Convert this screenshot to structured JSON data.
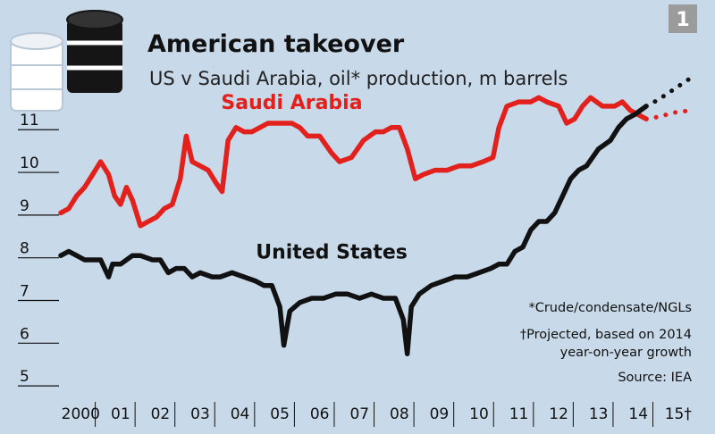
{
  "chart_number": "1",
  "title": "American takeover",
  "subtitle": "US v Saudi Arabia, oil* production, m barrels",
  "notes": {
    "footnote": "*Crude/condensate/NGLs",
    "projection_line1": "†Projected, based on 2014",
    "projection_line2": "year-on-year growth",
    "source": "Source: IEA"
  },
  "colors": {
    "background": "#c8d9e9",
    "saudi": "#e3211c",
    "us": "#111111",
    "badge": "#9b9b9b"
  },
  "icon": "oil-barrels-icon",
  "chart_data": {
    "type": "line",
    "title": "American takeover",
    "subtitle": "US v Saudi Arabia, oil* production, m barrels",
    "xlabel": "",
    "ylabel": "",
    "ylim": [
      4.5,
      11.8
    ],
    "xlim": [
      2000,
      2016.2
    ],
    "yticks": [
      "5",
      "6",
      "7",
      "8",
      "9",
      "10",
      "11"
    ],
    "xticks": [
      {
        "label": "2000",
        "value": 2000.5
      },
      {
        "label": "01",
        "value": 2001.5
      },
      {
        "label": "02",
        "value": 2002.5
      },
      {
        "label": "03",
        "value": 2003.5
      },
      {
        "label": "04",
        "value": 2004.5
      },
      {
        "label": "05",
        "value": 2005.5
      },
      {
        "label": "06",
        "value": 2006.5
      },
      {
        "label": "07",
        "value": 2007.5
      },
      {
        "label": "08",
        "value": 2008.5
      },
      {
        "label": "09",
        "value": 2009.5
      },
      {
        "label": "10",
        "value": 2010.5
      },
      {
        "label": "11",
        "value": 2011.5
      },
      {
        "label": "12",
        "value": 2012.5
      },
      {
        "label": "13",
        "value": 2013.5
      },
      {
        "label": "14",
        "value": 2014.5
      },
      {
        "label": "15†",
        "value": 2015.5
      }
    ],
    "grid": "horizontal ticks only",
    "series": [
      {
        "name": "Saudi Arabia",
        "color": "#e3211c",
        "points": [
          [
            2000.0,
            8.8
          ],
          [
            2000.2,
            8.9
          ],
          [
            2000.4,
            9.2
          ],
          [
            2000.6,
            9.4
          ],
          [
            2000.8,
            9.7
          ],
          [
            2001.0,
            10.0
          ],
          [
            2001.2,
            9.7
          ],
          [
            2001.35,
            9.2
          ],
          [
            2001.5,
            9.0
          ],
          [
            2001.65,
            9.4
          ],
          [
            2001.8,
            9.1
          ],
          [
            2002.0,
            8.5
          ],
          [
            2002.2,
            8.6
          ],
          [
            2002.4,
            8.7
          ],
          [
            2002.6,
            8.9
          ],
          [
            2002.8,
            9.0
          ],
          [
            2003.0,
            9.6
          ],
          [
            2003.15,
            10.6
          ],
          [
            2003.3,
            10.0
          ],
          [
            2003.5,
            9.9
          ],
          [
            2003.7,
            9.8
          ],
          [
            2003.9,
            9.5
          ],
          [
            2004.05,
            9.3
          ],
          [
            2004.2,
            10.5
          ],
          [
            2004.4,
            10.8
          ],
          [
            2004.6,
            10.7
          ],
          [
            2004.8,
            10.7
          ],
          [
            2005.0,
            10.8
          ],
          [
            2005.2,
            10.9
          ],
          [
            2005.5,
            10.9
          ],
          [
            2005.8,
            10.9
          ],
          [
            2006.0,
            10.8
          ],
          [
            2006.2,
            10.6
          ],
          [
            2006.5,
            10.6
          ],
          [
            2006.8,
            10.2
          ],
          [
            2007.0,
            10.0
          ],
          [
            2007.3,
            10.1
          ],
          [
            2007.6,
            10.5
          ],
          [
            2007.9,
            10.7
          ],
          [
            2008.1,
            10.7
          ],
          [
            2008.3,
            10.8
          ],
          [
            2008.5,
            10.8
          ],
          [
            2008.7,
            10.3
          ],
          [
            2008.9,
            9.6
          ],
          [
            2009.1,
            9.7
          ],
          [
            2009.4,
            9.8
          ],
          [
            2009.7,
            9.8
          ],
          [
            2010.0,
            9.9
          ],
          [
            2010.3,
            9.9
          ],
          [
            2010.6,
            10.0
          ],
          [
            2010.85,
            10.1
          ],
          [
            2011.0,
            10.8
          ],
          [
            2011.2,
            11.3
          ],
          [
            2011.5,
            11.4
          ],
          [
            2011.8,
            11.4
          ],
          [
            2012.0,
            11.5
          ],
          [
            2012.2,
            11.4
          ],
          [
            2012.5,
            11.3
          ],
          [
            2012.7,
            10.9
          ],
          [
            2012.9,
            11.0
          ],
          [
            2013.1,
            11.3
          ],
          [
            2013.3,
            11.5
          ],
          [
            2013.6,
            11.3
          ],
          [
            2013.9,
            11.3
          ],
          [
            2014.1,
            11.4
          ],
          [
            2014.3,
            11.2
          ],
          [
            2014.5,
            11.1
          ],
          [
            2014.7,
            11.0
          ]
        ]
      },
      {
        "name": "Saudi Arabia projection",
        "color": "#e3211c",
        "dashed": true,
        "points": [
          [
            2014.7,
            11.0
          ],
          [
            2015.0,
            11.05
          ],
          [
            2015.4,
            11.15
          ],
          [
            2015.8,
            11.2
          ]
        ]
      },
      {
        "name": "United States",
        "color": "#111111",
        "points": [
          [
            2000.0,
            7.8
          ],
          [
            2000.2,
            7.9
          ],
          [
            2000.4,
            7.8
          ],
          [
            2000.6,
            7.7
          ],
          [
            2000.8,
            7.7
          ],
          [
            2001.0,
            7.7
          ],
          [
            2001.2,
            7.3
          ],
          [
            2001.3,
            7.6
          ],
          [
            2001.5,
            7.6
          ],
          [
            2001.8,
            7.8
          ],
          [
            2002.0,
            7.8
          ],
          [
            2002.3,
            7.7
          ],
          [
            2002.5,
            7.7
          ],
          [
            2002.7,
            7.4
          ],
          [
            2002.9,
            7.5
          ],
          [
            2003.1,
            7.5
          ],
          [
            2003.3,
            7.3
          ],
          [
            2003.5,
            7.4
          ],
          [
            2003.8,
            7.3
          ],
          [
            2004.0,
            7.3
          ],
          [
            2004.3,
            7.4
          ],
          [
            2004.6,
            7.3
          ],
          [
            2004.9,
            7.2
          ],
          [
            2005.1,
            7.1
          ],
          [
            2005.3,
            7.1
          ],
          [
            2005.5,
            6.6
          ],
          [
            2005.6,
            5.7
          ],
          [
            2005.75,
            6.5
          ],
          [
            2006.0,
            6.7
          ],
          [
            2006.3,
            6.8
          ],
          [
            2006.6,
            6.8
          ],
          [
            2006.9,
            6.9
          ],
          [
            2007.2,
            6.9
          ],
          [
            2007.5,
            6.8
          ],
          [
            2007.8,
            6.9
          ],
          [
            2008.1,
            6.8
          ],
          [
            2008.4,
            6.8
          ],
          [
            2008.6,
            6.3
          ],
          [
            2008.7,
            5.5
          ],
          [
            2008.8,
            6.6
          ],
          [
            2009.0,
            6.9
          ],
          [
            2009.3,
            7.1
          ],
          [
            2009.6,
            7.2
          ],
          [
            2009.9,
            7.3
          ],
          [
            2010.2,
            7.3
          ],
          [
            2010.5,
            7.4
          ],
          [
            2010.8,
            7.5
          ],
          [
            2011.0,
            7.6
          ],
          [
            2011.2,
            7.6
          ],
          [
            2011.4,
            7.9
          ],
          [
            2011.6,
            8.0
          ],
          [
            2011.8,
            8.4
          ],
          [
            2012.0,
            8.6
          ],
          [
            2012.2,
            8.6
          ],
          [
            2012.4,
            8.8
          ],
          [
            2012.6,
            9.2
          ],
          [
            2012.8,
            9.6
          ],
          [
            2013.0,
            9.8
          ],
          [
            2013.2,
            9.9
          ],
          [
            2013.5,
            10.3
          ],
          [
            2013.8,
            10.5
          ],
          [
            2014.0,
            10.8
          ],
          [
            2014.2,
            11.0
          ],
          [
            2014.4,
            11.1
          ],
          [
            2014.7,
            11.3
          ]
        ]
      },
      {
        "name": "United States projection",
        "color": "#111111",
        "dashed": true,
        "points": [
          [
            2014.7,
            11.3
          ],
          [
            2015.0,
            11.45
          ],
          [
            2015.4,
            11.7
          ],
          [
            2015.8,
            11.95
          ]
        ]
      }
    ],
    "annotations": [
      {
        "text": "Saudi Arabia",
        "x": 2005.8,
        "y": 11.4,
        "color": "#e3211c"
      },
      {
        "text": "United States",
        "x": 2006.8,
        "y": 7.9,
        "color": "#111111"
      }
    ]
  }
}
